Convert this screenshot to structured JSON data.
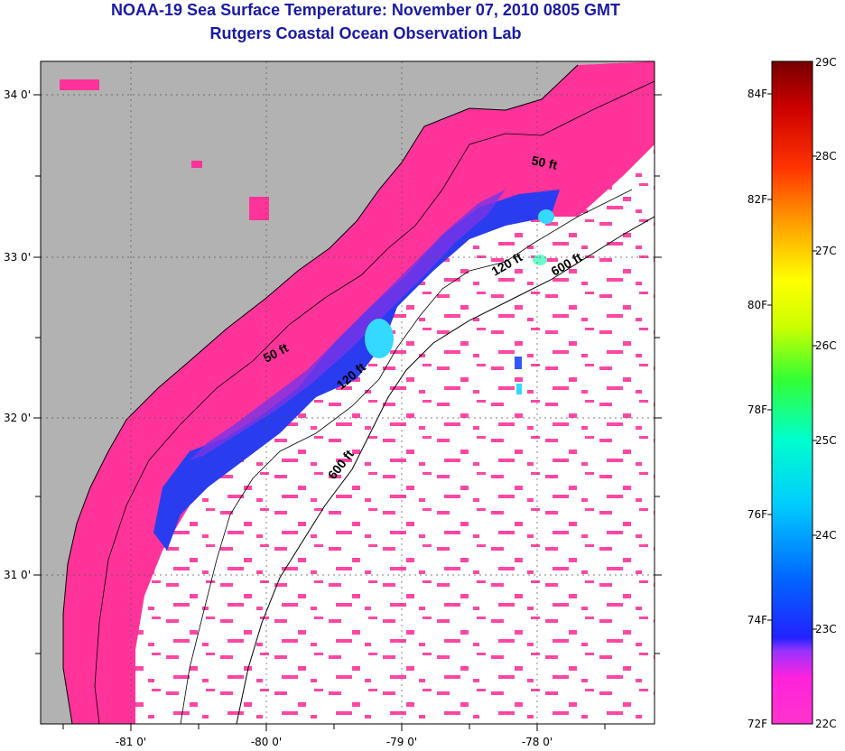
{
  "header": {
    "title": "NOAA-19 Sea Surface Temperature:  November 07, 2010 0805 GMT",
    "subtitle": "Rutgers Coastal Ocean Observation Lab"
  },
  "map": {
    "lon_ticks": [
      "-81 0'",
      "-80 0'",
      "-79 0'",
      "-78 0'"
    ],
    "lat_ticks": [
      "34 0'",
      "33 0'",
      "32 0'",
      "31 0'"
    ],
    "isobaths": [
      {
        "label": "50 ft"
      },
      {
        "label": "50 ft"
      },
      {
        "label": "120 ft"
      },
      {
        "label": "120 ft"
      },
      {
        "label": "600 ft"
      },
      {
        "label": "600 ft"
      }
    ],
    "colors": {
      "land": "#b2b2b2",
      "cloud": "#ffffff",
      "sst_warm_band": "#ff3399",
      "sst_cool_band": "#1a3cff",
      "sst_cyan": "#33d9ff"
    }
  },
  "colorbar": {
    "fahrenheit_labels": [
      "84F",
      "82F",
      "80F",
      "78F",
      "76F",
      "74F",
      "72F"
    ],
    "celsius_labels": [
      "29C",
      "28C",
      "27C",
      "26C",
      "25C",
      "24C",
      "23C",
      "22C"
    ],
    "colors": [
      "#ff33cc",
      "#cc33ff",
      "#3333ff",
      "#0066ff",
      "#00ccff",
      "#00ffcc",
      "#33ff33",
      "#ccff00",
      "#ffff00",
      "#ff9900",
      "#ff3300",
      "#cc0000",
      "#880000"
    ]
  }
}
